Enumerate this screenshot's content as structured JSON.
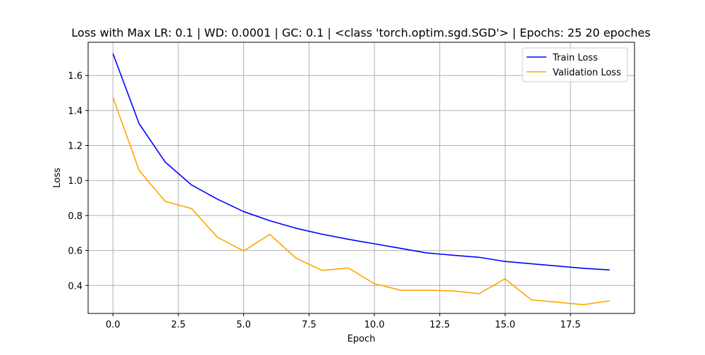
{
  "chart_data": {
    "type": "line",
    "title": "Loss with Max LR: 0.1 | WD: 0.0001 | GC: 0.1 | <class 'torch.optim.sgd.SGD'> | Epochs: 25 20 epoches",
    "xlabel": "Epoch",
    "ylabel": "Loss",
    "xlim": [
      -0.95,
      19.95
    ],
    "ylim": [
      0.24,
      1.79
    ],
    "xticks": [
      0.0,
      2.5,
      5.0,
      7.5,
      10.0,
      12.5,
      15.0,
      17.5
    ],
    "yticks": [
      0.4,
      0.6,
      0.8,
      1.0,
      1.2,
      1.4,
      1.6
    ],
    "grid": true,
    "legend_position": "top-right",
    "x": [
      0,
      1,
      2,
      3,
      4,
      5,
      6,
      7,
      8,
      9,
      10,
      11,
      12,
      13,
      14,
      15,
      16,
      17,
      18,
      19
    ],
    "series": [
      {
        "name": "Train Loss",
        "color": "#0000ff",
        "values": [
          1.725,
          1.325,
          1.105,
          0.975,
          0.893,
          0.822,
          0.77,
          0.727,
          0.693,
          0.664,
          0.638,
          0.612,
          0.586,
          0.573,
          0.561,
          0.537,
          0.524,
          0.511,
          0.498,
          0.489
        ]
      },
      {
        "name": "Validation Loss",
        "color": "#ffa500",
        "values": [
          1.475,
          1.058,
          0.88,
          0.84,
          0.675,
          0.597,
          0.692,
          0.556,
          0.486,
          0.5,
          0.41,
          0.373,
          0.373,
          0.369,
          0.353,
          0.438,
          0.318,
          0.304,
          0.29,
          0.312
        ]
      }
    ]
  }
}
